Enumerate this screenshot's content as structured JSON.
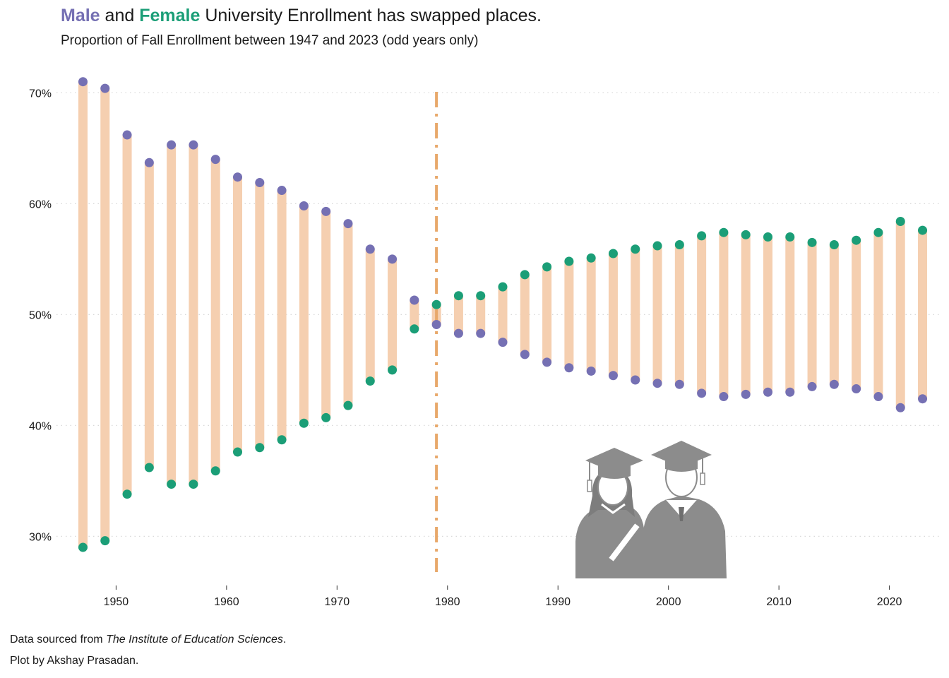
{
  "title": {
    "male_word": "Male",
    "and_word": "and",
    "female_word": "Female",
    "rest": "University Enrollment has swapped places."
  },
  "subtitle": "Proportion of Fall Enrollment between 1947 and 2023 (odd years only)",
  "caption": {
    "line1_prefix": "Data sourced from",
    "line1_source": "The  Institute of Education Sciences",
    "line1_suffix": ".",
    "line2": "Plot by  Akshay Prasadan."
  },
  "colors": {
    "male": "#7570b3",
    "female": "#1b9e77",
    "segment": "#f5cfb0",
    "crossover_line": "#e8a86a",
    "grid": "#d9d9d9",
    "illustration": "#8c8c8c"
  },
  "illustration_icon": "graduates-icon",
  "chart_data": {
    "type": "dumbbell",
    "x_ticks": [
      1950,
      1960,
      1970,
      1980,
      1990,
      2000,
      2010,
      2020
    ],
    "y_ticks": [
      0.3,
      0.4,
      0.5,
      0.6,
      0.7
    ],
    "y_tick_labels": [
      "30%",
      "40%",
      "50%",
      "60%",
      "70%"
    ],
    "xlim": [
      1945.5,
      2024.5
    ],
    "ylim": [
      0.255,
      0.72
    ],
    "crossover_year": 1979,
    "grid": "horizontal dotted",
    "years": [
      1947,
      1949,
      1951,
      1953,
      1955,
      1957,
      1959,
      1961,
      1963,
      1965,
      1967,
      1969,
      1971,
      1973,
      1975,
      1977,
      1979,
      1981,
      1983,
      1985,
      1987,
      1989,
      1991,
      1993,
      1995,
      1997,
      1999,
      2001,
      2003,
      2005,
      2007,
      2009,
      2011,
      2013,
      2015,
      2017,
      2019,
      2021,
      2023
    ],
    "series": [
      {
        "name": "Male",
        "values": [
          0.71,
          0.704,
          0.662,
          0.637,
          0.653,
          0.653,
          0.64,
          0.624,
          0.619,
          0.612,
          0.598,
          0.593,
          0.582,
          0.559,
          0.55,
          0.513,
          0.491,
          0.483,
          0.483,
          0.475,
          0.464,
          0.457,
          0.452,
          0.449,
          0.445,
          0.441,
          0.438,
          0.437,
          0.429,
          0.426,
          0.428,
          0.43,
          0.43,
          0.435,
          0.437,
          0.433,
          0.426,
          0.416,
          0.424
        ]
      },
      {
        "name": "Female",
        "values": [
          0.29,
          0.296,
          0.338,
          0.362,
          0.347,
          0.347,
          0.359,
          0.376,
          0.38,
          0.387,
          0.402,
          0.407,
          0.418,
          0.44,
          0.45,
          0.487,
          0.509,
          0.517,
          0.517,
          0.525,
          0.536,
          0.543,
          0.548,
          0.551,
          0.555,
          0.559,
          0.562,
          0.563,
          0.571,
          0.574,
          0.572,
          0.57,
          0.57,
          0.565,
          0.563,
          0.567,
          0.574,
          0.584,
          0.576
        ]
      }
    ]
  }
}
